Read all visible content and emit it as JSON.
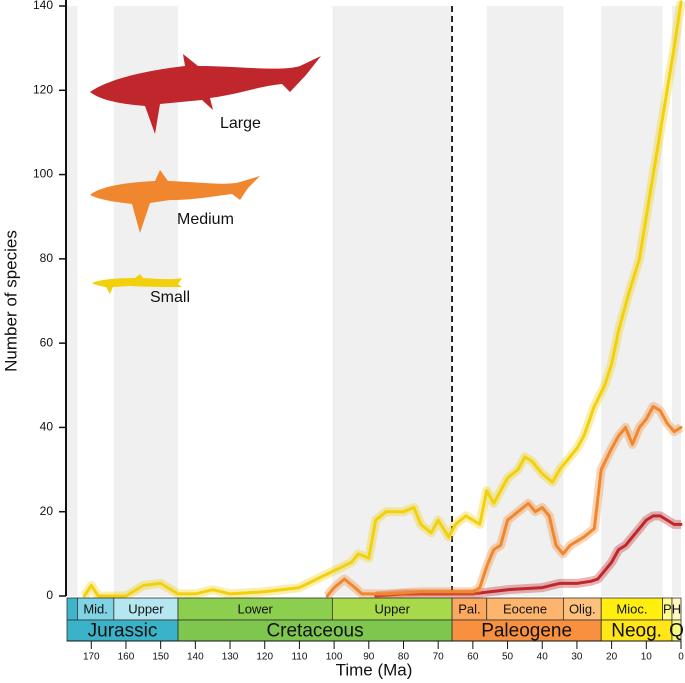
{
  "chart_data": {
    "type": "line",
    "xlabel": "Time (Ma)",
    "ylabel": "Number of species",
    "xlim": [
      177,
      0
    ],
    "ylim": [
      0,
      140
    ],
    "xticks": [
      170,
      160,
      150,
      140,
      130,
      120,
      110,
      100,
      90,
      80,
      70,
      60,
      50,
      40,
      30,
      20,
      10,
      0
    ],
    "yticks": [
      0,
      20,
      40,
      60,
      80,
      100,
      120,
      140
    ],
    "boundary_line": 66,
    "shaded_intervals": [
      {
        "start": 177,
        "end": 174
      },
      {
        "start": 163.5,
        "end": 145
      },
      {
        "start": 100.5,
        "end": 66
      },
      {
        "start": 56,
        "end": 33.9
      },
      {
        "start": 23,
        "end": 5.3
      },
      {
        "start": 2.6,
        "end": 0
      }
    ],
    "timescale": {
      "epochs": [
        {
          "label": null,
          "start": 177,
          "end": 174,
          "color": "#3fb5cc"
        },
        {
          "label": "Mid.",
          "start": 174,
          "end": 163.5,
          "color": "#80d3e4"
        },
        {
          "label": "Upper",
          "start": 163.5,
          "end": 145,
          "color": "#b6e6f0"
        },
        {
          "label": "Lower",
          "start": 145,
          "end": 100.5,
          "color": "#8ccf4f"
        },
        {
          "label": "Upper",
          "start": 100.5,
          "end": 66,
          "color": "#a8d94b"
        },
        {
          "label": "Pal.",
          "start": 66,
          "end": 56,
          "color": "#fda85f"
        },
        {
          "label": "Eocene",
          "start": 56,
          "end": 33.9,
          "color": "#fdb56d"
        },
        {
          "label": "Olig.",
          "start": 33.9,
          "end": 23,
          "color": "#fdc17b"
        },
        {
          "label": "Mioc.",
          "start": 23,
          "end": 5.3,
          "color": "#ffee10"
        },
        {
          "label": "P",
          "start": 5.3,
          "end": 2.6,
          "color": "#ffff90"
        },
        {
          "label": "H",
          "start": 2.6,
          "end": 0,
          "color": "#fff8c0"
        }
      ],
      "periods": [
        {
          "label": "Jurassic",
          "start": 177,
          "end": 145,
          "color": "#3ab3c8"
        },
        {
          "label": "Cretaceous",
          "start": 145,
          "end": 66,
          "color": "#7fc64e"
        },
        {
          "label": "Paleogene",
          "start": 66,
          "end": 23,
          "color": "#f8913f"
        },
        {
          "label": "Neog.",
          "start": 23,
          "end": 2.6,
          "color": "#ffe619"
        },
        {
          "label": "Q",
          "start": 2.6,
          "end": 0,
          "color": "#f9f97f"
        }
      ]
    },
    "series": [
      {
        "name": "Large",
        "color": "#c0272d",
        "x": [
          88,
          80,
          70,
          60,
          55,
          50,
          40,
          35,
          30,
          26,
          24,
          22,
          20,
          18,
          16,
          14,
          12,
          10,
          8,
          6,
          4,
          2,
          0
        ],
        "values": [
          0,
          0.5,
          0.5,
          0.5,
          1,
          1.5,
          2,
          3,
          3,
          3.5,
          4,
          6,
          8,
          11,
          12,
          14,
          16,
          18,
          19,
          19,
          18,
          17,
          17
        ]
      },
      {
        "name": "Medium",
        "color": "#f0862e",
        "x": [
          102,
          100,
          97,
          94,
          92,
          85,
          75,
          66,
          60,
          58,
          56,
          54,
          52,
          50,
          47,
          44,
          42,
          40,
          38,
          36,
          34,
          32,
          30,
          28,
          25,
          23,
          20,
          18,
          16,
          14,
          12,
          10,
          8,
          6,
          4,
          2,
          0
        ],
        "values": [
          0,
          2,
          4,
          2,
          0.5,
          0.5,
          1,
          1,
          1,
          2,
          7,
          11,
          12,
          18,
          20,
          22,
          20,
          21,
          19,
          12,
          10,
          12,
          13,
          14,
          16,
          30,
          35,
          38,
          40,
          36,
          40,
          42,
          45,
          44,
          41,
          39,
          40
        ]
      },
      {
        "name": "Small",
        "color": "#f2d10c",
        "x": [
          172,
          170,
          168,
          160,
          155,
          150,
          145,
          140,
          135,
          130,
          120,
          110,
          105,
          100,
          95,
          93,
          90,
          88,
          85,
          80,
          77,
          75,
          72,
          70,
          67,
          65,
          62,
          58,
          56,
          54,
          50,
          47,
          45,
          43,
          40,
          37,
          35,
          30,
          28,
          25,
          22,
          20,
          18,
          15,
          12,
          10,
          8,
          6,
          4,
          2,
          0
        ],
        "values": [
          0,
          2.5,
          0,
          0,
          2.5,
          3,
          0.5,
          0.5,
          1.5,
          0.5,
          1,
          2,
          4,
          6,
          8,
          10,
          9,
          18,
          20,
          20,
          21,
          17,
          15,
          18,
          14,
          17,
          19,
          17,
          25,
          22,
          28,
          30,
          33,
          32,
          29,
          27,
          30,
          35,
          38,
          45,
          50,
          55,
          63,
          72,
          80,
          90,
          100,
          110,
          120,
          130,
          141
        ]
      }
    ]
  }
}
